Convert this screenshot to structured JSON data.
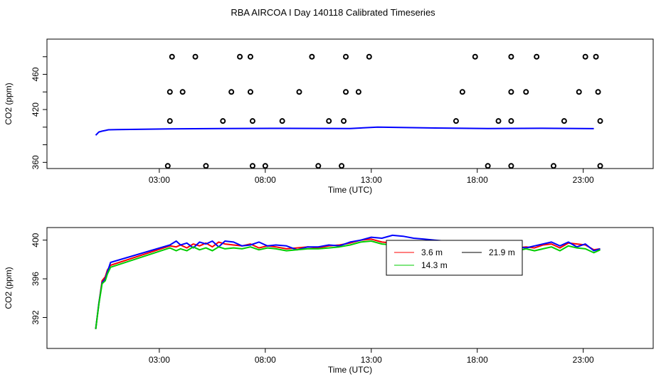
{
  "figure": {
    "title": "RBA AIRCOA I  Day 140118  Calibrated Timeseries"
  },
  "colors": {
    "red": "#ff0000",
    "green": "#00cd00",
    "blue": "#0000ff",
    "black": "#000000"
  },
  "chart_data": [
    {
      "type": "scatter",
      "xlabel": "Time (UTC)",
      "ylabel": "CO2 (ppm)",
      "xlim": [
        -2.3,
        26.3
      ],
      "ylim": [
        353,
        500
      ],
      "xticks": [
        3,
        8,
        13,
        18,
        23
      ],
      "xticklabels": [
        "03:00",
        "08:00",
        "13:00",
        "18:00",
        "23:00"
      ],
      "yticks": [
        360,
        380,
        400,
        420,
        440,
        460,
        480
      ],
      "yticklabels": [
        "360",
        "",
        "",
        "420",
        "",
        "460",
        ""
      ],
      "series": [
        {
          "color": "#0000ff",
          "kind": "line",
          "x": [
            0.0,
            0.15,
            0.3,
            0.45,
            0.6,
            1.0,
            3.5,
            6.0,
            9.0,
            12.0,
            13.3,
            16.0,
            18.5,
            21.0,
            23.5
          ],
          "y": [
            390.8,
            394.5,
            395.5,
            396.2,
            397.0,
            397.2,
            398.0,
            398.5,
            398.6,
            398.5,
            400.0,
            399.0,
            398.5,
            398.7,
            398.3
          ]
        }
      ],
      "points": {
        "x": [
          3.6,
          4.7,
          6.8,
          7.3,
          10.2,
          11.8,
          12.9,
          17.9,
          19.6,
          20.8,
          23.1,
          23.6,
          3.5,
          4.1,
          6.4,
          7.3,
          9.6,
          11.8,
          12.4,
          17.3,
          19.6,
          20.3,
          22.8,
          23.7,
          3.5,
          6.0,
          7.4,
          8.8,
          11.0,
          11.7,
          17.0,
          19.0,
          19.6,
          22.1,
          23.8,
          3.4,
          5.2,
          7.4,
          8.0,
          10.5,
          11.6,
          18.5,
          19.6,
          21.6,
          23.8
        ],
        "y": [
          480,
          480,
          480,
          480,
          480,
          480,
          480,
          480,
          480,
          480,
          480,
          480,
          440,
          440,
          440,
          440,
          440,
          440,
          440,
          440,
          440,
          440,
          440,
          440,
          407,
          407,
          407,
          407,
          407,
          407,
          407,
          407,
          407,
          407,
          407,
          356,
          356,
          356,
          356,
          356,
          356,
          356,
          356,
          356,
          356
        ]
      }
    },
    {
      "type": "line",
      "xlabel": "Time (UTC)",
      "ylabel": "CO2 (ppm)",
      "xlim": [
        -2.3,
        26.3
      ],
      "ylim": [
        388.8,
        401.3
      ],
      "xticks": [
        3,
        8,
        13,
        18,
        23
      ],
      "xticklabels": [
        "03:00",
        "08:00",
        "13:00",
        "18:00",
        "23:00"
      ],
      "yticks": [
        392,
        396,
        400
      ],
      "yticklabels": [
        "392",
        "396",
        "400"
      ],
      "legend": {
        "position": "center-right",
        "items": [
          "3.6 m",
          "21.9 m",
          "14.3 m"
        ]
      },
      "series": [
        {
          "name": "3.6 m",
          "color": "#ff0000",
          "x": [
            0.0,
            0.15,
            0.3,
            0.45,
            0.55,
            0.7,
            3.5,
            3.8,
            4.0,
            4.3,
            4.6,
            4.9,
            5.2,
            5.5,
            5.8,
            6.1,
            6.5,
            6.9,
            7.3,
            7.7,
            8.1,
            8.5,
            9.0,
            9.5,
            10.0,
            10.5,
            11.0,
            11.5,
            12.0,
            12.5,
            13.0,
            13.5,
            14.0,
            14.5,
            15.0,
            15.5,
            16.0,
            16.5,
            17.0,
            17.3,
            17.6,
            17.9,
            18.2,
            18.5,
            18.8,
            19.1,
            19.5,
            19.9,
            20.3,
            20.7,
            21.1,
            21.5,
            21.9,
            22.3,
            22.7,
            23.1,
            23.5,
            23.8
          ],
          "y": [
            390.8,
            393.5,
            395.8,
            396.2,
            396.9,
            397.4,
            399.4,
            399.3,
            399.5,
            399.2,
            399.6,
            399.4,
            399.7,
            399.3,
            399.8,
            399.6,
            399.5,
            399.4,
            399.6,
            399.2,
            399.4,
            399.3,
            399.1,
            399.2,
            399.3,
            399.2,
            399.4,
            399.5,
            399.7,
            400.0,
            400.1,
            399.8,
            399.7,
            399.6,
            399.6,
            399.5,
            399.4,
            399.5,
            399.6,
            399.2,
            399.6,
            399.2,
            399.4,
            399.3,
            399.2,
            399.5,
            399.4,
            399.2,
            399.3,
            399.2,
            399.5,
            399.6,
            399.2,
            399.7,
            399.6,
            399.5,
            399.0,
            399.1
          ]
        },
        {
          "name": "21.9 m",
          "color": "#0000ff",
          "x": [
            0.0,
            0.15,
            0.3,
            0.45,
            0.55,
            0.7,
            3.5,
            3.8,
            4.0,
            4.3,
            4.6,
            4.9,
            5.2,
            5.5,
            5.8,
            6.1,
            6.5,
            6.9,
            7.3,
            7.7,
            8.1,
            8.5,
            9.0,
            9.5,
            10.0,
            10.5,
            11.0,
            11.5,
            12.0,
            12.5,
            13.0,
            13.5,
            14.0,
            14.5,
            15.0,
            15.5,
            16.0,
            16.5,
            17.0,
            17.3,
            17.6,
            17.9,
            18.2,
            18.5,
            18.8,
            19.1,
            19.5,
            19.9,
            20.3,
            20.7,
            21.1,
            21.5,
            21.9,
            22.3,
            22.7,
            23.1,
            23.5,
            23.8
          ],
          "y": [
            390.8,
            393.5,
            395.6,
            396.0,
            396.7,
            397.7,
            399.5,
            399.9,
            399.5,
            399.7,
            399.2,
            399.8,
            399.6,
            399.9,
            399.3,
            399.9,
            399.8,
            399.4,
            399.5,
            399.8,
            399.4,
            399.5,
            399.4,
            399.0,
            399.3,
            399.3,
            399.5,
            399.4,
            399.8,
            400.0,
            400.3,
            400.2,
            400.5,
            400.4,
            400.2,
            400.1,
            400.0,
            399.9,
            399.8,
            399.6,
            399.8,
            399.4,
            399.7,
            399.2,
            399.7,
            399.4,
            399.5,
            399.3,
            399.2,
            399.4,
            399.6,
            399.8,
            399.4,
            399.8,
            399.3,
            399.6,
            398.9,
            399.1
          ]
        },
        {
          "name": "14.3 m",
          "color": "#00cd00",
          "x": [
            0.0,
            0.15,
            0.3,
            0.45,
            0.55,
            0.7,
            3.5,
            3.8,
            4.0,
            4.3,
            4.6,
            4.9,
            5.2,
            5.5,
            5.8,
            6.1,
            6.5,
            6.9,
            7.3,
            7.7,
            8.1,
            8.5,
            9.0,
            9.5,
            10.0,
            10.5,
            11.0,
            11.5,
            12.0,
            12.5,
            13.0,
            13.5,
            14.0,
            14.5,
            15.0,
            15.5,
            16.0,
            16.5,
            17.0,
            17.3,
            17.6,
            17.9,
            18.2,
            18.5,
            18.8,
            19.1,
            19.5,
            19.9,
            20.3,
            20.7,
            21.1,
            21.5,
            21.9,
            22.3,
            22.7,
            23.1,
            23.5,
            23.8
          ],
          "y": [
            390.8,
            393.4,
            395.5,
            395.8,
            396.5,
            397.2,
            399.2,
            398.9,
            399.1,
            398.9,
            399.3,
            399.0,
            399.2,
            398.9,
            399.3,
            399.1,
            399.2,
            399.1,
            399.3,
            399.0,
            399.2,
            399.1,
            398.9,
            399.0,
            399.1,
            399.1,
            399.2,
            399.3,
            399.5,
            399.8,
            399.9,
            399.6,
            399.5,
            399.4,
            399.3,
            399.2,
            399.1,
            399.2,
            399.3,
            398.8,
            399.3,
            398.8,
            399.1,
            398.7,
            399.0,
            399.1,
            399.0,
            398.9,
            399.1,
            398.9,
            399.1,
            399.3,
            398.9,
            399.4,
            399.2,
            399.1,
            398.7,
            399.0
          ]
        }
      ]
    }
  ]
}
